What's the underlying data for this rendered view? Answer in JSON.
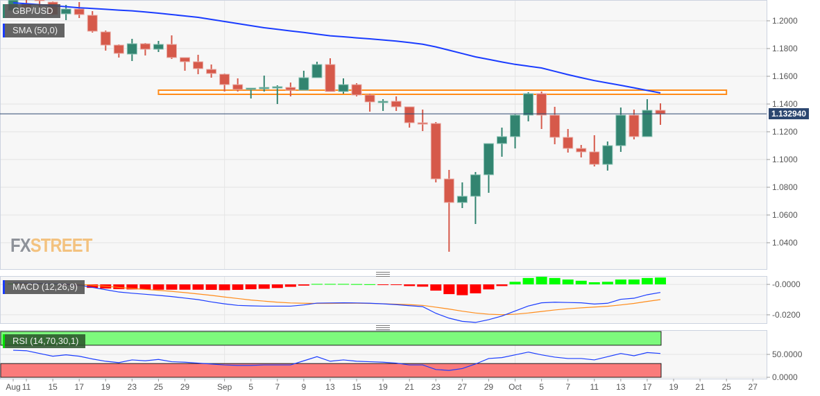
{
  "instrument": {
    "label": "GBP/USD",
    "color": "#328470"
  },
  "overlay": {
    "label": "SMA (50,0)",
    "color": "#1a3cff"
  },
  "macd_panel": {
    "label": "MACD (12,26,9)",
    "color": "#1a3cff"
  },
  "rsi_panel": {
    "label": "RSI (14,70,30,1)",
    "color": "#00e000"
  },
  "watermark": {
    "part1": "FX",
    "part2": "STREET"
  },
  "current_price": {
    "label": "1.132940",
    "value": 1.13294
  },
  "colors": {
    "up": "#328470",
    "down": "#d6594a",
    "sma": "#1a3cff",
    "signal": "#ff8c1a",
    "zone": "#ff8c1a",
    "hist_up": "#00ff00",
    "hist_down": "#ff0000",
    "overbought": "#7dfa7d",
    "oversold": "#fa7b7b",
    "price_line": "#2c4770"
  },
  "chart_data": [
    {
      "type": "candlestick",
      "title": "GBP/USD",
      "ylim": [
        1.021,
        1.215
      ],
      "grid": true,
      "y_ticks": [
        "1.2000",
        "1.1800",
        "1.1600",
        "1.1400",
        "1.1200",
        "1.1000",
        "1.0800",
        "1.0600",
        "1.0400"
      ],
      "x_ticks": [
        {
          "label": "Aug",
          "date": "08-10"
        },
        {
          "label": "11",
          "date": "08-11"
        },
        {
          "label": "15",
          "date": "08-15"
        },
        {
          "label": "17",
          "date": "08-17"
        },
        {
          "label": "19",
          "date": "08-19"
        },
        {
          "label": "23",
          "date": "08-23"
        },
        {
          "label": "25",
          "date": "08-25"
        },
        {
          "label": "29",
          "date": "08-29"
        },
        {
          "label": "Sep",
          "date": "09-01"
        },
        {
          "label": "5",
          "date": "09-05"
        },
        {
          "label": "7",
          "date": "09-07"
        },
        {
          "label": "9",
          "date": "09-09"
        },
        {
          "label": "13",
          "date": "09-13"
        },
        {
          "label": "15",
          "date": "09-15"
        },
        {
          "label": "19",
          "date": "09-19"
        },
        {
          "label": "21",
          "date": "09-21"
        },
        {
          "label": "23",
          "date": "09-23"
        },
        {
          "label": "27",
          "date": "09-27"
        },
        {
          "label": "29",
          "date": "09-29"
        },
        {
          "label": "Oct",
          "date": "10-03"
        },
        {
          "label": "5",
          "date": "10-05"
        },
        {
          "label": "7",
          "date": "10-07"
        },
        {
          "label": "11",
          "date": "10-11"
        },
        {
          "label": "13",
          "date": "10-13"
        },
        {
          "label": "17",
          "date": "10-17"
        },
        {
          "label": "19",
          "date": "10-19"
        },
        {
          "label": "21",
          "date": "10-21"
        },
        {
          "label": "25",
          "date": "10-25"
        },
        {
          "label": "27",
          "date": "10-27"
        }
      ],
      "candles_columns": [
        "date",
        "open",
        "high",
        "low",
        "close"
      ],
      "candles": [
        [
          "08-10",
          1.2075,
          1.2155,
          1.207,
          1.215
        ],
        [
          "08-11",
          1.212,
          1.215,
          1.208,
          1.2095
        ],
        [
          "08-12",
          1.216,
          1.2165,
          1.21,
          1.2145
        ],
        [
          "08-15",
          1.2135,
          1.214,
          1.204,
          1.2045
        ],
        [
          "08-16",
          1.205,
          1.2115,
          1.2005,
          1.2085
        ],
        [
          "08-17",
          1.2085,
          1.2135,
          1.202,
          1.2045
        ],
        [
          "08-18",
          1.204,
          1.207,
          1.1915,
          1.1925
        ],
        [
          "08-19",
          1.192,
          1.193,
          1.1785,
          1.1825
        ],
        [
          "08-22",
          1.1825,
          1.183,
          1.1735,
          1.1765
        ],
        [
          "08-23",
          1.176,
          1.187,
          1.171,
          1.1835
        ],
        [
          "08-24",
          1.1835,
          1.184,
          1.175,
          1.1795
        ],
        [
          "08-25",
          1.1795,
          1.1855,
          1.1775,
          1.183
        ],
        [
          "08-26",
          1.183,
          1.1895,
          1.1725,
          1.1735
        ],
        [
          "08-29",
          1.1735,
          1.1735,
          1.164,
          1.1705
        ],
        [
          "08-30",
          1.1705,
          1.1755,
          1.1615,
          1.1655
        ],
        [
          "08-31",
          1.165,
          1.1685,
          1.159,
          1.162
        ],
        [
          "09-01",
          1.1615,
          1.162,
          1.149,
          1.154
        ],
        [
          "09-02",
          1.154,
          1.1585,
          1.149,
          1.1505
        ],
        [
          "09-05",
          1.1505,
          1.1515,
          1.144,
          1.1515
        ],
        [
          "09-06",
          1.1515,
          1.1605,
          1.149,
          1.152
        ],
        [
          "09-07",
          1.1515,
          1.1535,
          1.14,
          1.1525
        ],
        [
          "09-08",
          1.152,
          1.1555,
          1.1455,
          1.15
        ],
        [
          "09-09",
          1.15,
          1.164,
          1.15,
          1.159
        ],
        [
          "09-12",
          1.159,
          1.1705,
          1.159,
          1.1685
        ],
        [
          "09-13",
          1.1685,
          1.173,
          1.149,
          1.149
        ],
        [
          "09-14",
          1.149,
          1.1585,
          1.1475,
          1.154
        ],
        [
          "09-15",
          1.154,
          1.155,
          1.1455,
          1.1465
        ],
        [
          "09-16",
          1.1465,
          1.1475,
          1.1345,
          1.1415
        ],
        [
          "09-19",
          1.1415,
          1.1435,
          1.135,
          1.142
        ],
        [
          "09-20",
          1.142,
          1.1455,
          1.135,
          1.138
        ],
        [
          "09-21",
          1.138,
          1.138,
          1.123,
          1.1265
        ],
        [
          "09-22",
          1.1265,
          1.136,
          1.1205,
          1.1255
        ],
        [
          "09-23",
          1.126,
          1.127,
          1.0835,
          1.086
        ],
        [
          "09-26",
          1.086,
          1.0925,
          1.0335,
          1.069
        ],
        [
          "09-27",
          1.069,
          1.0835,
          1.065,
          1.0735
        ],
        [
          "09-28",
          1.0735,
          1.091,
          1.0535,
          1.089
        ],
        [
          "09-29",
          1.089,
          1.1115,
          1.076,
          1.1115
        ],
        [
          "09-30",
          1.1115,
          1.123,
          1.102,
          1.1165
        ],
        [
          "10-03",
          1.1165,
          1.1325,
          1.108,
          1.132
        ],
        [
          "10-04",
          1.132,
          1.1485,
          1.1275,
          1.1475
        ],
        [
          "10-05",
          1.1475,
          1.149,
          1.122,
          1.132
        ],
        [
          "10-06",
          1.132,
          1.138,
          1.111,
          1.116
        ],
        [
          "10-07",
          1.116,
          1.122,
          1.105,
          1.108
        ],
        [
          "10-10",
          1.108,
          1.1105,
          1.1015,
          1.1055
        ],
        [
          "10-11",
          1.1055,
          1.1175,
          1.095,
          1.0965
        ],
        [
          "10-12",
          1.0965,
          1.113,
          1.092,
          1.11
        ],
        [
          "10-13",
          1.11,
          1.1375,
          1.1055,
          1.132
        ],
        [
          "10-14",
          1.132,
          1.136,
          1.1145,
          1.1165
        ],
        [
          "10-17",
          1.1165,
          1.1435,
          1.1165,
          1.1355
        ],
        [
          "10-18",
          1.1355,
          1.1405,
          1.125,
          1.1329
        ]
      ],
      "sma_50": [
        1.213,
        1.2123,
        1.2116,
        1.2109,
        1.2102,
        1.2094,
        1.2089,
        1.2083,
        1.2077,
        1.2072,
        1.2064,
        1.2055,
        1.2045,
        1.2035,
        1.2025,
        1.201,
        1.1995,
        1.198,
        1.1965,
        1.195,
        1.1939,
        1.1927,
        1.1916,
        1.1904,
        1.1892,
        1.1885,
        1.1877,
        1.187,
        1.1862,
        1.1854,
        1.1843,
        1.1831,
        1.1812,
        1.1788,
        1.1764,
        1.174,
        1.1722,
        1.1703,
        1.1686,
        1.1673,
        1.166,
        1.1636,
        1.1612,
        1.159,
        1.1569,
        1.1552,
        1.1535,
        1.1517,
        1.1498,
        1.148
      ],
      "zone": {
        "from": "08-25",
        "to": "10-25",
        "top": 1.15,
        "bottom": 1.147
      }
    },
    {
      "type": "line+bar",
      "title": "MACD (12,26,9)",
      "ylim": [
        -0.0255,
        0.0055
      ],
      "y_ticks": [
        "-0.0000",
        "-0.0200"
      ],
      "macd": [
        0.001,
        0.0008,
        0.0006,
        0.0004,
        0.0002,
        -0.0005,
        -0.002,
        -0.0035,
        -0.005,
        -0.0058,
        -0.0065,
        -0.0072,
        -0.008,
        -0.009,
        -0.01,
        -0.0115,
        -0.0128,
        -0.0138,
        -0.0141,
        -0.0143,
        -0.0143,
        -0.0143,
        -0.0135,
        -0.0123,
        -0.0122,
        -0.0121,
        -0.0122,
        -0.0124,
        -0.0128,
        -0.0133,
        -0.014,
        -0.0146,
        -0.019,
        -0.0222,
        -0.0243,
        -0.025,
        -0.0232,
        -0.0208,
        -0.0175,
        -0.0142,
        -0.0121,
        -0.0117,
        -0.0119,
        -0.0121,
        -0.0129,
        -0.0124,
        -0.0098,
        -0.0091,
        -0.0068,
        -0.0053
      ],
      "signal": [
        0.0003,
        0.0003,
        0.0003,
        0.0002,
        0.0002,
        0.0,
        -0.0005,
        -0.0012,
        -0.002,
        -0.0027,
        -0.0033,
        -0.0039,
        -0.0046,
        -0.0054,
        -0.0063,
        -0.0072,
        -0.0083,
        -0.0093,
        -0.0103,
        -0.011,
        -0.0117,
        -0.0122,
        -0.0124,
        -0.0125,
        -0.0125,
        -0.0124,
        -0.0124,
        -0.0125,
        -0.0127,
        -0.013,
        -0.0133,
        -0.0138,
        -0.015,
        -0.0162,
        -0.0176,
        -0.0188,
        -0.0196,
        -0.0199,
        -0.0196,
        -0.0188,
        -0.0178,
        -0.0168,
        -0.016,
        -0.0154,
        -0.0149,
        -0.0144,
        -0.0135,
        -0.0125,
        -0.0112,
        -0.01
      ],
      "histogram": [
        0.0006,
        0.0006,
        0.0004,
        0.0002,
        -0.0002,
        -0.001,
        -0.0023,
        -0.0027,
        -0.0031,
        -0.0033,
        -0.0034,
        -0.0035,
        -0.0035,
        -0.0035,
        -0.0035,
        -0.0036,
        -0.0038,
        -0.0036,
        -0.0032,
        -0.0029,
        -0.0024,
        -0.0016,
        -0.0008,
        0.0003,
        0.0003,
        0.0003,
        0.0002,
        0.0001,
        -0.0001,
        -0.0003,
        -0.0011,
        -0.0015,
        -0.0041,
        -0.0064,
        -0.0071,
        -0.0059,
        -0.0033,
        -0.0011,
        0.0017,
        0.0042,
        0.005,
        0.0042,
        0.0032,
        0.0024,
        0.0014,
        0.0017,
        0.0032,
        0.0032,
        0.0042,
        0.0045
      ]
    },
    {
      "type": "line",
      "title": "RSI (14,70,30,1)",
      "ylim": [
        0,
        100
      ],
      "y_ticks": [
        "50.0000",
        "0.0000"
      ],
      "overbought": 70,
      "oversold": 30,
      "rsi": [
        59,
        58,
        52,
        46,
        49,
        46,
        40,
        35,
        32,
        38,
        36,
        39,
        34,
        33,
        31,
        29,
        27,
        26,
        26,
        27,
        27,
        27,
        36,
        45,
        35,
        38,
        35,
        34,
        33,
        31,
        27,
        27,
        17,
        15,
        19,
        29,
        41,
        43,
        49,
        55,
        49,
        44,
        41,
        41,
        38,
        45,
        52,
        47,
        54,
        52
      ]
    }
  ]
}
